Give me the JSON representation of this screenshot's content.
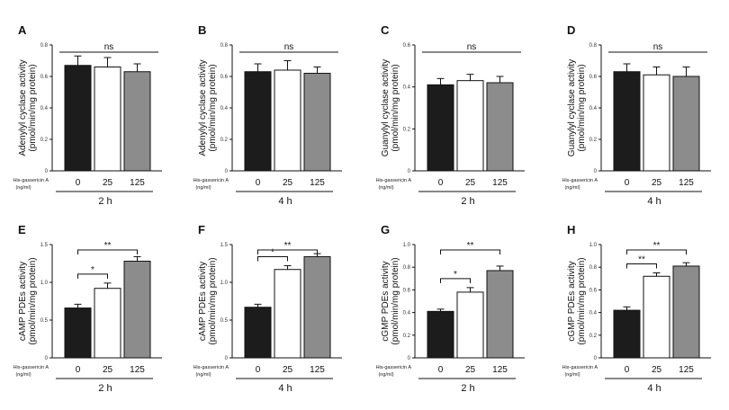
{
  "chart_data": [
    {
      "type": "bar",
      "panel": "A",
      "ylabel_line1": "Adenylyl cyclase activity",
      "ylabel_line2": "(pmol/min/mg protein)",
      "yticks": [
        "0",
        "0.2",
        "0.4",
        "0.6",
        "0.8"
      ],
      "ylim": [
        0,
        0.8
      ],
      "categories": [
        "0",
        "25",
        "125"
      ],
      "values": [
        0.67,
        0.66,
        0.63
      ],
      "errors": [
        0.06,
        0.06,
        0.05
      ],
      "colors": [
        "#1c1c1c",
        "#ffffff",
        "#8c8c8c"
      ],
      "treatment_label": "His-gassericin A",
      "unit_label": "(ng/ml)",
      "time": "2 h",
      "brackets": [
        {
          "from": 0,
          "to": 2,
          "label": "ns"
        }
      ]
    },
    {
      "type": "bar",
      "panel": "B",
      "ylabel_line1": "Adenylyl cyclase activity",
      "ylabel_line2": "(pmol/min/mg protein)",
      "yticks": [
        "0",
        "0.2",
        "0.4",
        "0.6",
        "0.8"
      ],
      "ylim": [
        0,
        0.8
      ],
      "categories": [
        "0",
        "25",
        "125"
      ],
      "values": [
        0.63,
        0.64,
        0.62
      ],
      "errors": [
        0.05,
        0.06,
        0.04
      ],
      "colors": [
        "#1c1c1c",
        "#ffffff",
        "#8c8c8c"
      ],
      "treatment_label": "His-gassericin A",
      "unit_label": "(ng/ml)",
      "time": "4 h",
      "brackets": [
        {
          "from": 0,
          "to": 2,
          "label": "ns"
        }
      ]
    },
    {
      "type": "bar",
      "panel": "C",
      "ylabel_line1": "Guanylyl cyclase activity",
      "ylabel_line2": "(pmol/min/mg protein)",
      "yticks": [
        "0",
        "0.2",
        "0.4",
        "0.6"
      ],
      "ylim": [
        0,
        0.6
      ],
      "categories": [
        "0",
        "25",
        "125"
      ],
      "values": [
        0.41,
        0.43,
        0.42
      ],
      "errors": [
        0.03,
        0.03,
        0.03
      ],
      "colors": [
        "#1c1c1c",
        "#ffffff",
        "#8c8c8c"
      ],
      "treatment_label": "His-gassericin A",
      "unit_label": "(ng/ml)",
      "time": "2 h",
      "brackets": [
        {
          "from": 0,
          "to": 2,
          "label": "ns"
        }
      ]
    },
    {
      "type": "bar",
      "panel": "D",
      "ylabel_line1": "Guanylyl cyclase activity",
      "ylabel_line2": "(pmol/min/mg protein)",
      "yticks": [
        "0",
        "0.2",
        "0.4",
        "0.6",
        "0.8"
      ],
      "ylim": [
        0,
        0.8
      ],
      "categories": [
        "0",
        "25",
        "125"
      ],
      "values": [
        0.63,
        0.61,
        0.6
      ],
      "errors": [
        0.05,
        0.05,
        0.06
      ],
      "colors": [
        "#1c1c1c",
        "#ffffff",
        "#8c8c8c"
      ],
      "treatment_label": "His-gassericin A",
      "unit_label": "(ng/ml)",
      "time": "4 h",
      "brackets": [
        {
          "from": 0,
          "to": 2,
          "label": "ns"
        }
      ]
    },
    {
      "type": "bar",
      "panel": "E",
      "ylabel_line1": "cAMP PDEs activity",
      "ylabel_line2": "(pmol/min/mg protein)",
      "yticks": [
        "0",
        "0.5",
        "1.0",
        "1.5"
      ],
      "ylim": [
        0,
        1.5
      ],
      "categories": [
        "0",
        "25",
        "125"
      ],
      "values": [
        0.66,
        0.92,
        1.28
      ],
      "errors": [
        0.05,
        0.07,
        0.06
      ],
      "colors": [
        "#1c1c1c",
        "#ffffff",
        "#8c8c8c"
      ],
      "treatment_label": "His-gassericin A",
      "unit_label": "(ng/ml)",
      "time": "2 h",
      "brackets": [
        {
          "from": 0,
          "to": 1,
          "label": "*"
        },
        {
          "from": 0,
          "to": 2,
          "label": "**"
        }
      ]
    },
    {
      "type": "bar",
      "panel": "F",
      "ylabel_line1": "cAMP PDEs activity",
      "ylabel_line2": "(pmol/min/mg protein)",
      "yticks": [
        "0",
        "0.5",
        "1.0",
        "1.5"
      ],
      "ylim": [
        0,
        1.5
      ],
      "categories": [
        "0",
        "25",
        "125"
      ],
      "values": [
        0.67,
        1.17,
        1.34
      ],
      "errors": [
        0.04,
        0.05,
        0.04
      ],
      "colors": [
        "#1c1c1c",
        "#ffffff",
        "#8c8c8c"
      ],
      "treatment_label": "His-gassericin A",
      "unit_label": "(ng/ml)",
      "time": "4 h",
      "brackets": [
        {
          "from": 0,
          "to": 1,
          "label": "*"
        },
        {
          "from": 0,
          "to": 2,
          "label": "**"
        }
      ]
    },
    {
      "type": "bar",
      "panel": "G",
      "ylabel_line1": "cGMP PDEs activity",
      "ylabel_line2": "(pmol/min/mg protein)",
      "yticks": [
        "0",
        "0.2",
        "0.4",
        "0.6",
        "0.8",
        "1.0"
      ],
      "ylim": [
        0,
        1.0
      ],
      "categories": [
        "0",
        "25",
        "125"
      ],
      "values": [
        0.41,
        0.58,
        0.77
      ],
      "errors": [
        0.02,
        0.04,
        0.04
      ],
      "colors": [
        "#1c1c1c",
        "#ffffff",
        "#8c8c8c"
      ],
      "treatment_label": "His-gassericin A",
      "unit_label": "(ng/ml)",
      "time": "2 h",
      "brackets": [
        {
          "from": 0,
          "to": 1,
          "label": "*"
        },
        {
          "from": 0,
          "to": 2,
          "label": "**"
        }
      ]
    },
    {
      "type": "bar",
      "panel": "H",
      "ylabel_line1": "cGMP PDEs activity",
      "ylabel_line2": "(pmol/min/mg protein)",
      "yticks": [
        "0",
        "0.2",
        "0.4",
        "0.6",
        "0.8",
        "1.0"
      ],
      "ylim": [
        0,
        1.0
      ],
      "categories": [
        "0",
        "25",
        "125"
      ],
      "values": [
        0.42,
        0.72,
        0.81
      ],
      "errors": [
        0.03,
        0.03,
        0.03
      ],
      "colors": [
        "#1c1c1c",
        "#ffffff",
        "#8c8c8c"
      ],
      "treatment_label": "His-gassericin A",
      "unit_label": "(ng/ml)",
      "time": "4 h",
      "brackets": [
        {
          "from": 0,
          "to": 1,
          "label": "**"
        },
        {
          "from": 0,
          "to": 2,
          "label": "**"
        }
      ]
    }
  ]
}
